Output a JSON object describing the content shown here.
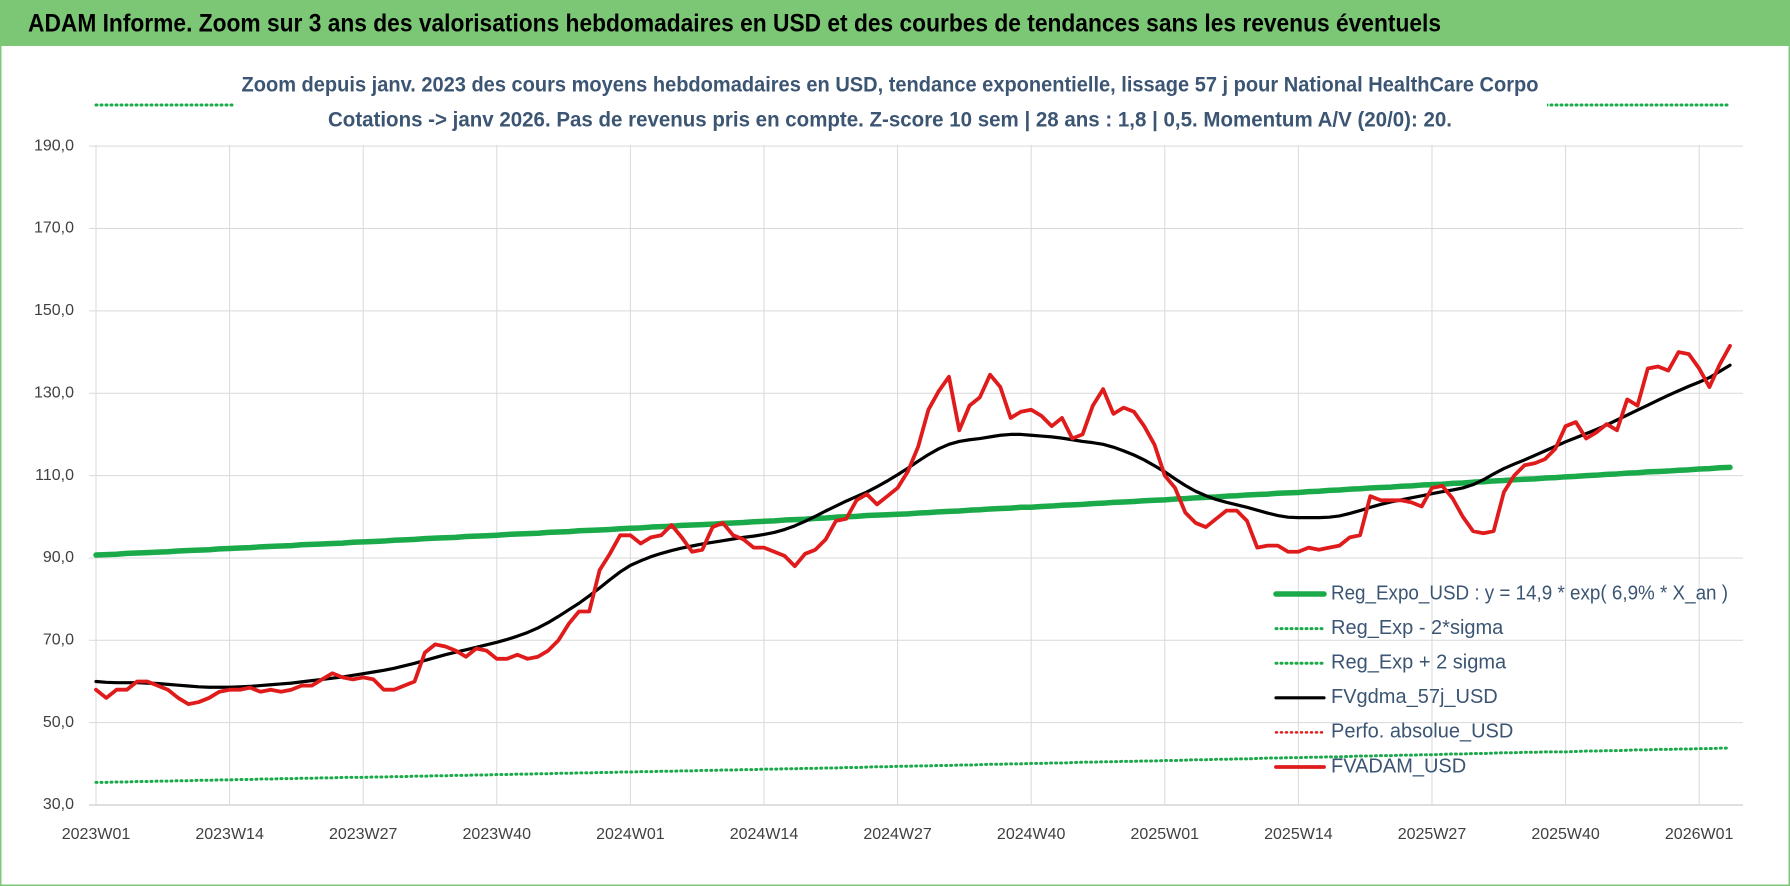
{
  "header": {
    "title": "ADAM Informe. Zoom sur 3 ans des valorisations hebdomadaires en USD et des courbes de tendances sans les revenus éventuels"
  },
  "chart_data": {
    "type": "line",
    "title": "Zoom depuis janv. 2023 des cours moyens hebdomadaires en USD, tendance exponentielle, lissage 57 j pour National HealthCare Corpo",
    "subtitle": "Cotations -> janv 2026. Pas de revenus pris en compte. Z-score 10 sem | 28 ans : 1,8 | 0,5. Momentum A/V (20/0): 20.",
    "categories": [
      "2023W01",
      null,
      null,
      null,
      null,
      null,
      null,
      null,
      null,
      null,
      null,
      null,
      null,
      "2023W14",
      null,
      null,
      null,
      null,
      null,
      null,
      null,
      null,
      null,
      null,
      null,
      null,
      "2023W27",
      null,
      null,
      null,
      null,
      null,
      null,
      null,
      null,
      null,
      null,
      null,
      null,
      "2023W40",
      null,
      null,
      null,
      null,
      null,
      null,
      null,
      null,
      null,
      null,
      null,
      null,
      "2024W01",
      null,
      null,
      null,
      null,
      null,
      null,
      null,
      null,
      null,
      null,
      null,
      null,
      "2024W14",
      null,
      null,
      null,
      null,
      null,
      null,
      null,
      null,
      null,
      null,
      null,
      null,
      "2024W27",
      null,
      null,
      null,
      null,
      null,
      null,
      null,
      null,
      null,
      null,
      null,
      null,
      "2024W40",
      null,
      null,
      null,
      null,
      null,
      null,
      null,
      null,
      null,
      null,
      null,
      null,
      "2025W01",
      null,
      null,
      null,
      null,
      null,
      null,
      null,
      null,
      null,
      null,
      null,
      null,
      "2025W14",
      null,
      null,
      null,
      null,
      null,
      null,
      null,
      null,
      null,
      null,
      null,
      null,
      "2025W27",
      null,
      null,
      null,
      null,
      null,
      null,
      null,
      null,
      null,
      null,
      null,
      null,
      "2025W40",
      null,
      null,
      null,
      null,
      null,
      null,
      null,
      null,
      null,
      null,
      null,
      null,
      "2026W01",
      null,
      null,
      null
    ],
    "ylim": [
      30,
      200
    ],
    "yticks": [
      {
        "value": 30,
        "label": "30,0"
      },
      {
        "value": 50,
        "label": "50,0"
      },
      {
        "value": 70,
        "label": "70,0"
      },
      {
        "value": 90,
        "label": "90,0"
      },
      {
        "value": 110,
        "label": "110,0"
      },
      {
        "value": 130,
        "label": "130,0"
      },
      {
        "value": 150,
        "label": "150,0"
      },
      {
        "value": 170,
        "label": "170,0"
      },
      {
        "value": 190,
        "label": "190,0"
      }
    ],
    "grid": true,
    "legend": "lower right",
    "series": [
      {
        "name": "Reg_Expo_USD : y = 14,9 * exp( 6,9% *  X_an )",
        "color": "#1aaa4a",
        "style": "solid",
        "width": 5.5,
        "values": [
          90.7,
          90.8,
          90.9,
          91.1,
          91.2,
          91.3,
          91.4,
          91.5,
          91.7,
          91.8,
          91.9,
          92.0,
          92.2,
          92.3,
          92.4,
          92.5,
          92.7,
          92.8,
          92.9,
          93.0,
          93.2,
          93.3,
          93.4,
          93.5,
          93.6,
          93.8,
          93.9,
          94.0,
          94.1,
          94.3,
          94.4,
          94.5,
          94.7,
          94.8,
          94.9,
          95.0,
          95.2,
          95.3,
          95.4,
          95.5,
          95.7,
          95.8,
          95.9,
          96.0,
          96.2,
          96.3,
          96.4,
          96.6,
          96.7,
          96.8,
          96.9,
          97.1,
          97.2,
          97.3,
          97.5,
          97.6,
          97.7,
          97.9,
          98.0,
          98.1,
          98.2,
          98.4,
          98.5,
          98.6,
          98.8,
          98.9,
          99.0,
          99.2,
          99.3,
          99.4,
          99.6,
          99.7,
          99.9,
          100.0,
          100.1,
          100.3,
          100.4,
          100.5,
          100.6,
          100.7,
          100.9,
          101.0,
          101.2,
          101.3,
          101.4,
          101.6,
          101.7,
          101.9,
          102.0,
          102.1,
          102.3,
          102.3,
          102.5,
          102.6,
          102.8,
          102.9,
          103.0,
          103.2,
          103.3,
          103.5,
          103.6,
          103.7,
          103.9,
          104.0,
          104.1,
          104.3,
          104.4,
          104.6,
          104.7,
          104.8,
          105.0,
          105.1,
          105.3,
          105.4,
          105.5,
          105.7,
          105.8,
          105.9,
          106.1,
          106.2,
          106.4,
          106.5,
          106.7,
          106.8,
          107.0,
          107.1,
          107.2,
          107.4,
          107.5,
          107.7,
          107.8,
          107.9,
          108.1,
          108.2,
          108.4,
          108.5,
          108.7,
          108.8,
          109.0,
          109.1,
          109.2,
          109.4,
          109.5,
          109.7,
          109.8,
          110.0,
          110.1,
          110.3,
          110.4,
          110.6,
          110.7,
          110.9,
          111.0,
          111.1,
          111.3,
          111.4,
          111.6,
          111.7,
          111.9,
          112.0
        ]
      },
      {
        "name": "Reg_Exp - 2*sigma",
        "color": "#1aaa4a",
        "style": "dotted",
        "width": 3,
        "values": [
          35.5,
          35.5,
          35.6,
          35.6,
          35.7,
          35.7,
          35.8,
          35.8,
          35.9,
          35.9,
          36.0,
          36.0,
          36.1,
          36.1,
          36.2,
          36.2,
          36.3,
          36.3,
          36.4,
          36.4,
          36.5,
          36.5,
          36.6,
          36.6,
          36.7,
          36.7,
          36.7,
          36.8,
          36.8,
          36.9,
          36.9,
          37.0,
          37.0,
          37.1,
          37.1,
          37.2,
          37.2,
          37.3,
          37.3,
          37.4,
          37.4,
          37.5,
          37.5,
          37.6,
          37.6,
          37.7,
          37.7,
          37.8,
          37.8,
          37.9,
          37.9,
          38.0,
          38.0,
          38.1,
          38.1,
          38.2,
          38.2,
          38.3,
          38.3,
          38.4,
          38.4,
          38.5,
          38.5,
          38.6,
          38.6,
          38.7,
          38.7,
          38.8,
          38.8,
          38.9,
          38.9,
          39.0,
          39.0,
          39.1,
          39.1,
          39.2,
          39.3,
          39.3,
          39.4,
          39.4,
          39.5,
          39.5,
          39.6,
          39.6,
          39.7,
          39.7,
          39.8,
          39.9,
          39.9,
          40.0,
          40.0,
          40.1,
          40.1,
          40.2,
          40.2,
          40.3,
          40.4,
          40.4,
          40.5,
          40.5,
          40.6,
          40.6,
          40.7,
          40.7,
          40.8,
          40.8,
          40.9,
          41.0,
          41.0,
          41.1,
          41.1,
          41.2,
          41.2,
          41.3,
          41.4,
          41.4,
          41.5,
          41.5,
          41.6,
          41.6,
          41.7,
          41.7,
          41.8,
          41.9,
          41.9,
          42.0,
          42.0,
          42.1,
          42.1,
          42.2,
          42.2,
          42.3,
          42.4,
          42.4,
          42.5,
          42.5,
          42.6,
          42.7,
          42.7,
          42.8,
          42.8,
          42.9,
          42.9,
          42.9,
          43.0,
          43.1,
          43.1,
          43.2,
          43.2,
          43.3,
          43.4,
          43.4,
          43.5,
          43.5,
          43.6,
          43.6,
          43.7,
          43.7,
          43.8,
          43.8
        ]
      },
      {
        "name": "Reg_Exp + 2 sigma",
        "color": "#1aaa4a",
        "style": "dotted",
        "width": 3,
        "values": [
          200,
          200,
          200,
          200,
          200,
          200,
          200,
          200,
          200,
          200,
          200,
          200,
          200,
          200,
          200,
          200,
          200,
          200,
          200,
          200,
          200,
          200,
          200,
          200,
          200,
          200,
          200,
          200,
          200,
          200,
          200,
          200,
          200,
          200,
          200,
          200,
          200,
          200,
          200,
          200,
          200,
          200,
          200,
          200,
          200,
          200,
          200,
          200,
          200,
          200,
          200,
          200,
          200,
          200,
          200,
          200,
          200,
          200,
          200,
          200,
          200,
          200,
          200,
          200,
          200,
          200,
          200,
          200,
          200,
          200,
          200,
          200,
          200,
          200,
          200,
          200,
          200,
          200,
          200,
          200,
          200,
          200,
          200,
          200,
          200,
          200,
          200,
          200,
          200,
          200,
          200,
          200,
          200,
          200,
          200,
          200,
          200,
          200,
          200,
          200,
          200,
          200,
          200,
          200,
          200,
          200,
          200,
          200,
          200,
          200,
          200,
          200,
          200,
          200,
          200,
          200,
          200,
          200,
          200,
          200,
          200,
          200,
          200,
          200,
          200,
          200,
          200,
          200,
          200,
          200,
          200,
          200,
          200,
          200,
          200,
          200,
          200,
          200,
          200,
          200,
          200,
          200,
          200,
          200,
          200,
          200,
          200,
          200,
          200,
          200,
          200,
          200,
          200,
          200,
          200,
          200,
          200,
          200,
          200,
          200
        ]
      },
      {
        "name": "FVgdma_57j_USD",
        "color": "#000000",
        "style": "solid",
        "width": 3.2,
        "values": [
          60,
          59.8,
          59.7,
          59.7,
          59.7,
          59.6,
          59.5,
          59.3,
          59.1,
          58.9,
          58.7,
          58.6,
          58.6,
          58.6,
          58.7,
          58.8,
          59.0,
          59.2,
          59.4,
          59.6,
          59.9,
          60.2,
          60.5,
          60.8,
          61.1,
          61.5,
          61.9,
          62.3,
          62.7,
          63.2,
          63.8,
          64.4,
          65.1,
          65.8,
          66.5,
          67.1,
          67.7,
          68.3,
          68.9,
          69.5,
          70.2,
          71.0,
          71.9,
          73.0,
          74.3,
          75.8,
          77.4,
          79.0,
          80.8,
          82.7,
          84.7,
          86.6,
          88.2,
          89.3,
          90.3,
          91.1,
          91.8,
          92.4,
          92.9,
          93.4,
          93.8,
          94.2,
          94.6,
          95.0,
          95.3,
          95.7,
          96.2,
          96.9,
          97.8,
          98.9,
          100.1,
          101.4,
          102.6,
          103.8,
          104.9,
          106.0,
          107.3,
          108.7,
          110.2,
          111.8,
          113.5,
          115.1,
          116.5,
          117.6,
          118.3,
          118.7,
          119.0,
          119.4,
          119.8,
          120.0,
          120.0,
          119.8,
          119.6,
          119.4,
          119.1,
          118.7,
          118.3,
          118.0,
          117.6,
          116.9,
          116.0,
          115.0,
          113.8,
          112.4,
          110.9,
          109.2,
          107.6,
          106.2,
          105.1,
          104.2,
          103.5,
          102.9,
          102.3,
          101.6,
          100.9,
          100.3,
          99.9,
          99.8,
          99.8,
          99.8,
          99.9,
          100.2,
          100.8,
          101.5,
          102.3,
          103.0,
          103.6,
          104.1,
          104.6,
          105.1,
          105.6,
          106.1,
          106.5,
          107.0,
          107.8,
          109.0,
          110.4,
          111.7,
          112.8,
          113.8,
          114.9,
          116.0,
          117.1,
          118.2,
          119.2,
          120.2,
          121.2,
          122.3,
          123.5,
          124.7,
          125.9,
          127.1,
          128.3,
          129.5,
          130.6,
          131.7,
          132.7,
          133.8,
          135.3,
          136.8
        ]
      },
      {
        "name": "Perfo. absolue_USD",
        "color": "#e01b1b",
        "style": "dotted",
        "width": 2.5,
        "values": [
          null,
          null,
          null,
          null,
          null,
          null,
          null,
          null,
          null,
          null,
          null,
          null,
          null,
          null,
          null,
          null,
          null,
          null,
          null,
          null,
          null,
          null,
          null,
          null,
          null,
          null,
          null,
          null,
          null,
          null,
          null,
          null,
          null,
          null,
          null,
          null,
          null,
          null,
          null,
          null,
          null,
          null,
          null,
          null,
          null,
          null,
          null,
          null,
          null,
          null,
          null,
          null,
          null,
          null,
          null,
          null,
          null,
          null,
          null,
          null,
          null,
          null,
          null,
          null,
          null,
          null,
          null,
          null,
          null,
          null,
          null,
          null,
          null,
          null,
          null,
          null,
          null,
          null,
          null,
          null,
          null,
          null,
          null,
          null,
          null,
          null,
          null,
          null,
          null,
          null,
          null,
          null,
          null,
          null,
          null,
          null,
          null,
          null,
          null,
          null,
          null,
          null,
          null,
          null,
          null,
          null,
          null,
          null,
          null,
          null,
          null,
          null,
          null,
          null,
          null,
          null,
          null,
          null,
          null,
          null,
          null,
          null,
          null,
          null,
          null,
          null,
          null,
          null,
          null,
          null,
          null,
          null,
          null,
          null,
          null,
          null,
          null,
          null,
          null,
          null,
          null,
          null,
          null,
          null,
          null,
          null,
          null,
          null,
          null,
          null,
          null,
          null,
          null,
          null,
          null,
          null,
          null,
          null,
          null,
          null
        ]
      },
      {
        "name": "FVADAM_USD",
        "color": "#e01b1b",
        "style": "solid",
        "width": 3.8,
        "values": [
          58,
          56,
          58,
          58,
          60,
          60,
          59,
          58,
          56,
          54.5,
          55,
          56,
          57.5,
          58,
          58,
          58.5,
          57.5,
          58,
          57.5,
          58,
          59,
          59,
          60.5,
          62,
          61,
          60.5,
          61,
          60.5,
          58,
          58,
          59,
          60,
          67,
          69,
          68.5,
          67.5,
          66,
          68,
          67.5,
          65.5,
          65.5,
          66.5,
          65.5,
          66,
          67.5,
          70,
          74,
          77,
          77,
          87,
          91,
          95.5,
          95.5,
          93.5,
          95,
          95.5,
          98,
          95,
          91.5,
          92,
          97.5,
          98.5,
          95.5,
          94.5,
          92.5,
          92.5,
          91.5,
          90.5,
          88,
          91,
          92,
          94.5,
          99,
          99.5,
          104,
          105.5,
          103,
          105,
          107,
          111,
          117,
          126,
          130.5,
          134,
          121,
          127,
          129,
          134.5,
          131.5,
          124,
          125.5,
          126,
          124.5,
          122,
          124,
          119,
          120,
          127,
          131,
          125,
          126.5,
          125.5,
          122,
          117.5,
          110,
          107,
          101,
          98.5,
          97.5,
          99.5,
          101.5,
          101.5,
          99,
          92.5,
          93,
          93,
          91.5,
          91.5,
          92.5,
          92,
          92.5,
          93,
          95,
          95.5,
          105,
          104,
          104,
          104,
          103.5,
          102.5,
          107,
          107.5,
          104.5,
          100,
          96.5,
          96,
          96.5,
          106,
          110,
          112.5,
          113,
          114,
          116.5,
          122,
          123,
          119,
          120.5,
          122.5,
          121,
          128.5,
          127,
          136,
          136.5,
          135.5,
          140,
          139.5,
          136,
          131.5,
          137,
          141.5
        ]
      }
    ]
  }
}
